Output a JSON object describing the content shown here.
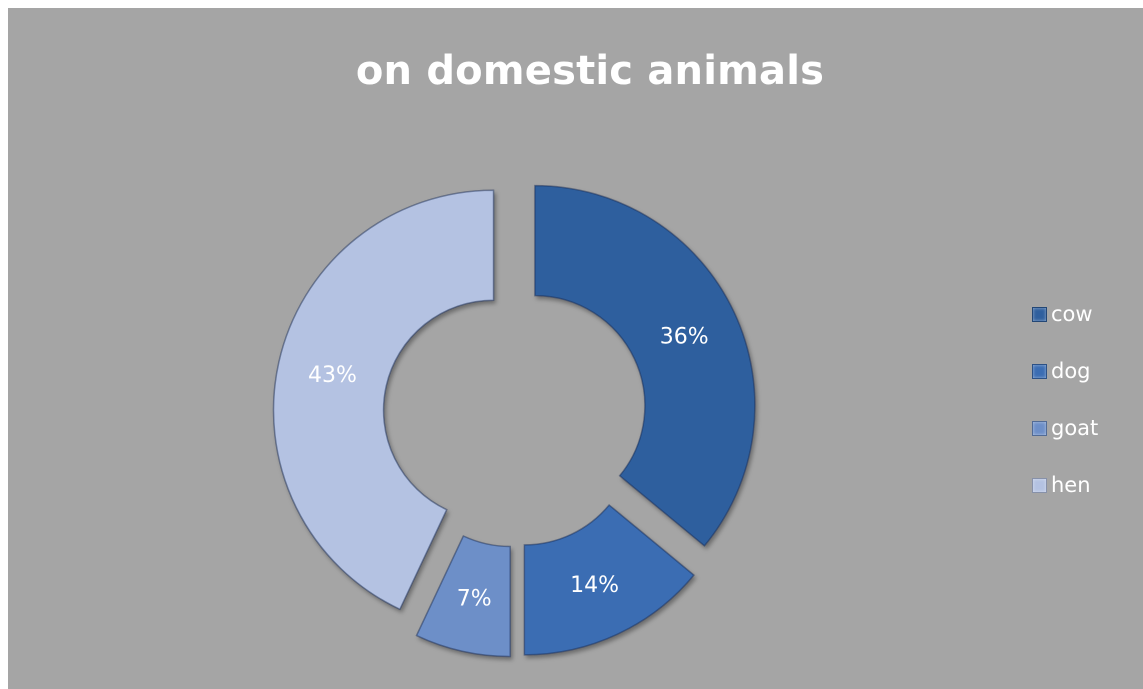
{
  "chart_data": {
    "type": "pie",
    "title": "on domestic animals",
    "categories": [
      "cow",
      "dog",
      "goat",
      "hen"
    ],
    "values": [
      36,
      14,
      7,
      43
    ],
    "value_labels": [
      "36%",
      "14%",
      "7%",
      "43%"
    ],
    "colors": [
      "#2f5f9e",
      "#3b6db3",
      "#6d8fc8",
      "#b4c2e2"
    ],
    "legend_position": "right",
    "donut": true,
    "exploded": true
  }
}
